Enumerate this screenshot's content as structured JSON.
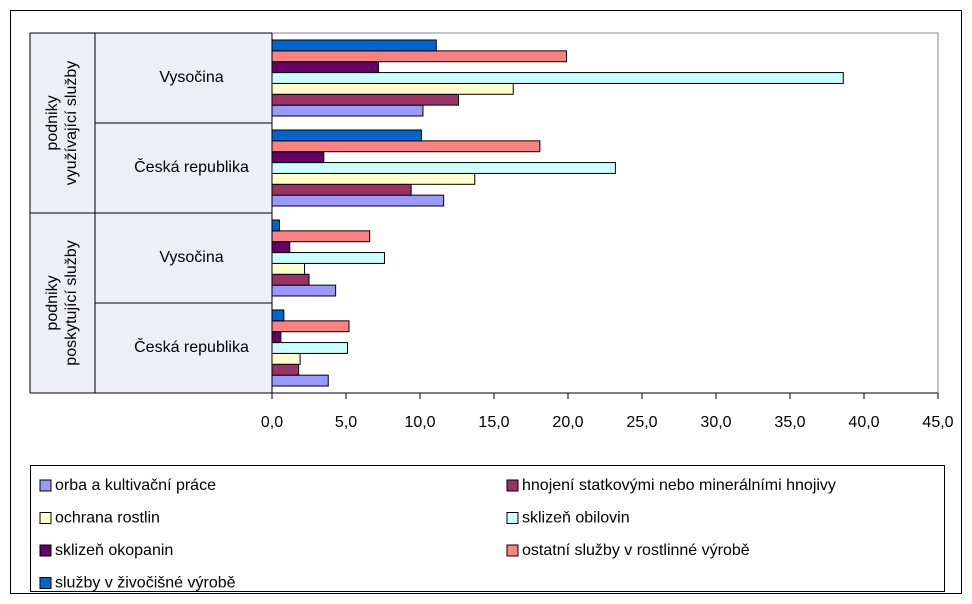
{
  "chart_data": {
    "type": "bar",
    "orientation": "horizontal",
    "categories": [
      "Česká republika",
      "Vysočina",
      "Česká republika",
      "Vysočina"
    ],
    "groups": [
      [
        "podniky",
        "poskytující služby"
      ],
      [
        "podniky",
        "využívající služby"
      ]
    ],
    "series": [
      {
        "name": "orba a kultivační práce",
        "color": "#9999ff",
        "values": [
          3.8,
          4.3,
          11.6,
          10.2
        ]
      },
      {
        "name": "hnojení statkovými nebo minerálními hnojivy",
        "color": "#993366",
        "values": [
          1.8,
          2.5,
          9.4,
          12.6
        ]
      },
      {
        "name": "ochrana rostlin",
        "color": "#ffffcc",
        "values": [
          1.9,
          2.2,
          13.7,
          16.3
        ]
      },
      {
        "name": "sklizeň obilovin",
        "color": "#ccffff",
        "values": [
          5.1,
          7.6,
          23.2,
          38.6
        ]
      },
      {
        "name": "sklizeň okopanin",
        "color": "#660066",
        "values": [
          0.6,
          1.2,
          3.5,
          7.2
        ]
      },
      {
        "name": "ostatní služby v rostlinné výrobě",
        "color": "#ff8080",
        "values": [
          5.2,
          6.6,
          18.1,
          19.9
        ]
      },
      {
        "name": "služby v živočišné výrobě",
        "color": "#0066cc",
        "values": [
          0.8,
          0.5,
          10.1,
          11.1
        ]
      }
    ],
    "xlim": [
      0,
      45
    ],
    "xticks": [
      {
        "value": 0,
        "label": "0,0"
      },
      {
        "value": 5,
        "label": "5,0"
      },
      {
        "value": 10,
        "label": "10,0"
      },
      {
        "value": 15,
        "label": "15,0"
      },
      {
        "value": 20,
        "label": "20,0"
      },
      {
        "value": 25,
        "label": "25,0"
      },
      {
        "value": 30,
        "label": "30,0"
      },
      {
        "value": 35,
        "label": "35,0"
      },
      {
        "value": 40,
        "label": "40,0"
      },
      {
        "value": 45,
        "label": "45,0"
      }
    ],
    "legend": "bottom"
  }
}
